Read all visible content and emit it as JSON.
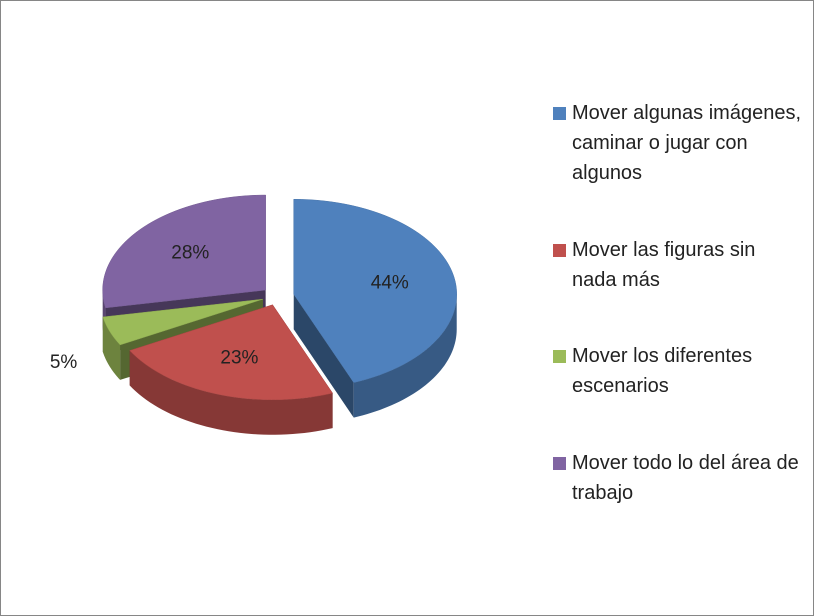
{
  "chart_data": {
    "type": "pie",
    "categories": [
      "Mover algunas imágenes, caminar o jugar con algunos",
      "Mover las figuras sin nada más",
      "Mover los diferentes escenarios",
      "Mover todo lo del área de trabajo"
    ],
    "values": [
      44,
      23,
      5,
      28
    ],
    "value_labels": [
      "44%",
      "23%",
      "5%",
      "28%"
    ],
    "colors": [
      "#4f81bd",
      "#c0504d",
      "#9bbb59",
      "#8064a2"
    ],
    "legend": "right"
  }
}
